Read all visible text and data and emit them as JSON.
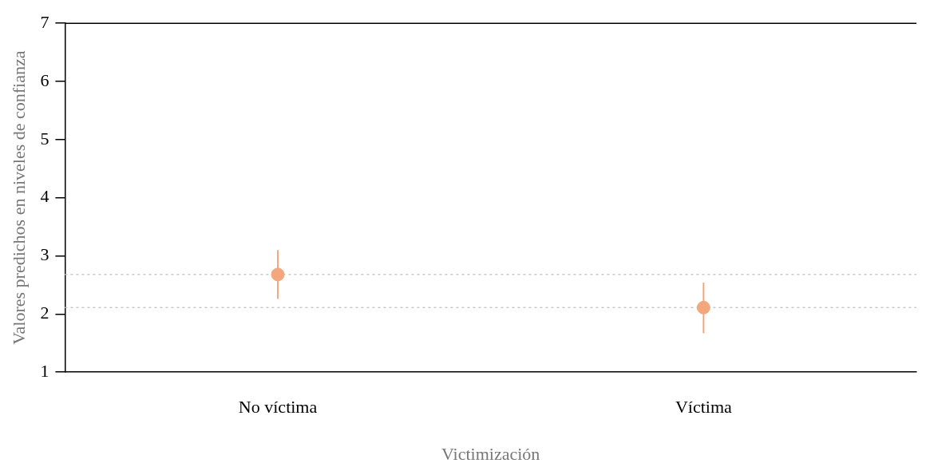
{
  "chart_data": {
    "type": "scatter",
    "xlabel": "Victimización",
    "ylabel": "Valores predichos en niveles de confianza",
    "categories": [
      "No víctima",
      "Víctima"
    ],
    "series": [
      {
        "color": "#f4a77c",
        "values": [
          2.68,
          2.11
        ],
        "errors": [
          [
            2.26,
            3.1
          ],
          [
            1.67,
            2.54
          ]
        ]
      }
    ],
    "ylim": [
      1,
      7
    ],
    "yticks": [
      1,
      2,
      3,
      4,
      5,
      6,
      7
    ],
    "grid": false,
    "legend": false,
    "marker": "circle",
    "ref_lines": [
      {
        "axis": "y",
        "value": 2.68,
        "color": "#c8c8c8",
        "line_style": "dotted"
      },
      {
        "axis": "y",
        "value": 2.11,
        "color": "#c8c8c8",
        "line_style": "dotted"
      }
    ]
  }
}
